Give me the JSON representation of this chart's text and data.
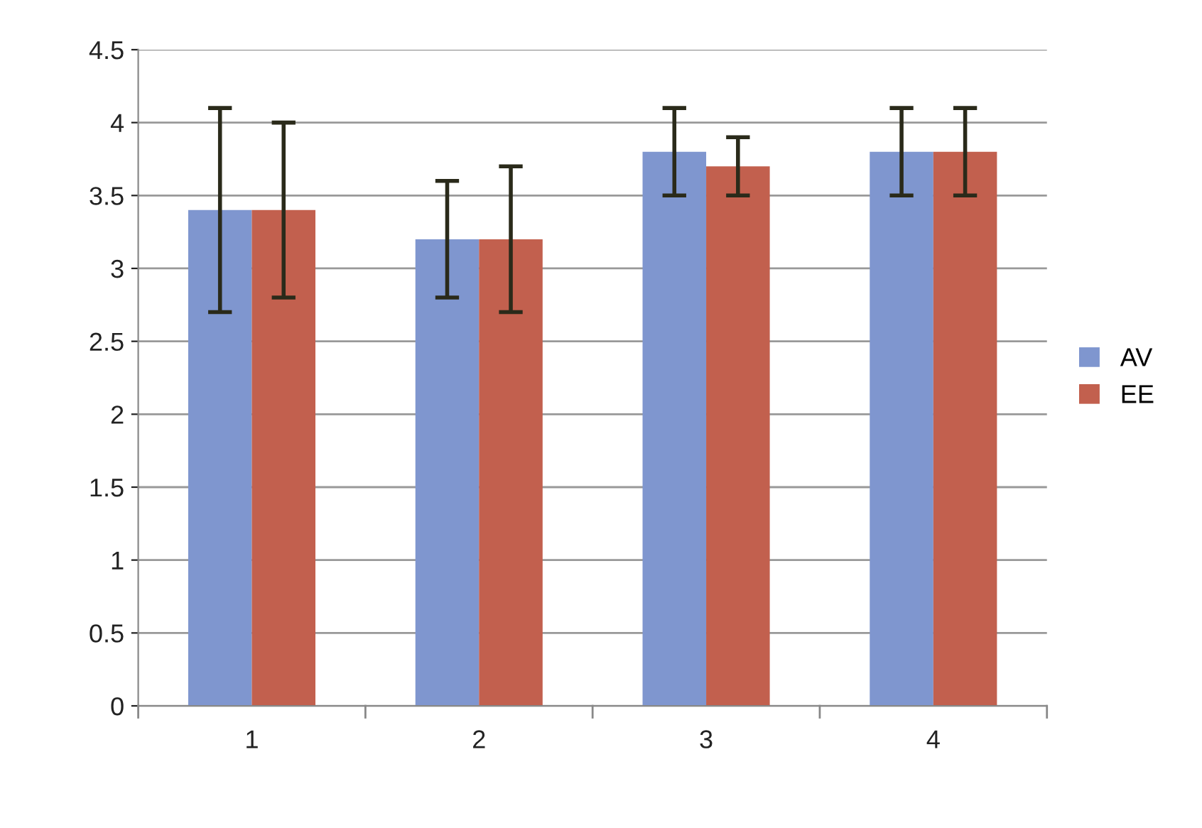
{
  "chart_data": {
    "type": "bar",
    "categories": [
      "1",
      "2",
      "3",
      "4"
    ],
    "series": [
      {
        "name": "AV",
        "color": "#7f96cf",
        "values": [
          3.4,
          3.2,
          3.8,
          3.8
        ],
        "errors": [
          0.7,
          0.4,
          0.3,
          0.3
        ]
      },
      {
        "name": "EE",
        "color": "#c2604e",
        "values": [
          3.4,
          3.2,
          3.7,
          3.8
        ],
        "errors": [
          0.6,
          0.5,
          0.2,
          0.3
        ]
      }
    ],
    "ylim": [
      0,
      4.5
    ],
    "yticks": [
      0,
      0.5,
      1,
      1.5,
      2,
      2.5,
      3,
      3.5,
      4,
      4.5
    ],
    "grid": "y",
    "legend": "right"
  }
}
